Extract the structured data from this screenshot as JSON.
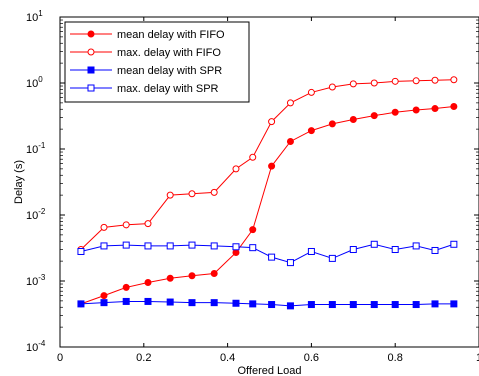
{
  "chart_data": {
    "type": "line",
    "xlabel": "Offered Load",
    "ylabel": "Delay (s)",
    "xlim": [
      0,
      1
    ],
    "ylim": [
      0.0001,
      10
    ],
    "yscale": "log",
    "xticks": [
      "0",
      "0.2",
      "0.4",
      "0.6",
      "0.8",
      "1"
    ],
    "yticks": [
      {
        "base": "10",
        "exp": "-4"
      },
      {
        "base": "10",
        "exp": "-3"
      },
      {
        "base": "10",
        "exp": "-2"
      },
      {
        "base": "10",
        "exp": "-1"
      },
      {
        "base": "10",
        "exp": "0"
      },
      {
        "base": "10",
        "exp": "1"
      }
    ],
    "grid": false,
    "legend_position": "top-left",
    "x": [
      0.05,
      0.105,
      0.158,
      0.21,
      0.263,
      0.315,
      0.368,
      0.42,
      0.46,
      0.505,
      0.55,
      0.6,
      0.65,
      0.7,
      0.75,
      0.8,
      0.85,
      0.895,
      0.94
    ],
    "series": [
      {
        "name": "mean delay with FIFO",
        "color": "#ff0000",
        "marker": "filled-circle",
        "values": [
          0.00045,
          0.0006,
          0.0008,
          0.00095,
          0.0011,
          0.0012,
          0.0013,
          0.0027,
          0.006,
          0.055,
          0.13,
          0.19,
          0.24,
          0.28,
          0.32,
          0.36,
          0.39,
          0.41,
          0.44
        ]
      },
      {
        "name": "max. delay with FIFO",
        "color": "#ff0000",
        "marker": "open-circle",
        "values": [
          0.003,
          0.0065,
          0.0071,
          0.0074,
          0.02,
          0.021,
          0.022,
          0.05,
          0.075,
          0.26,
          0.5,
          0.72,
          0.87,
          0.97,
          1.0,
          1.06,
          1.08,
          1.1,
          1.12
        ]
      },
      {
        "name": "mean delay with SPR",
        "color": "#0000ff",
        "marker": "filled-square",
        "values": [
          0.00045,
          0.00047,
          0.00049,
          0.00049,
          0.00048,
          0.00047,
          0.00047,
          0.00046,
          0.00045,
          0.00044,
          0.00042,
          0.00044,
          0.00044,
          0.00044,
          0.00044,
          0.00044,
          0.00044,
          0.00045,
          0.00045
        ]
      },
      {
        "name": "max. delay with SPR",
        "color": "#0000ff",
        "marker": "open-square",
        "values": [
          0.0028,
          0.0034,
          0.0035,
          0.0034,
          0.0034,
          0.0035,
          0.0034,
          0.0033,
          0.0032,
          0.0023,
          0.0019,
          0.0028,
          0.0022,
          0.003,
          0.0036,
          0.003,
          0.0034,
          0.0029,
          0.0036
        ]
      }
    ]
  }
}
